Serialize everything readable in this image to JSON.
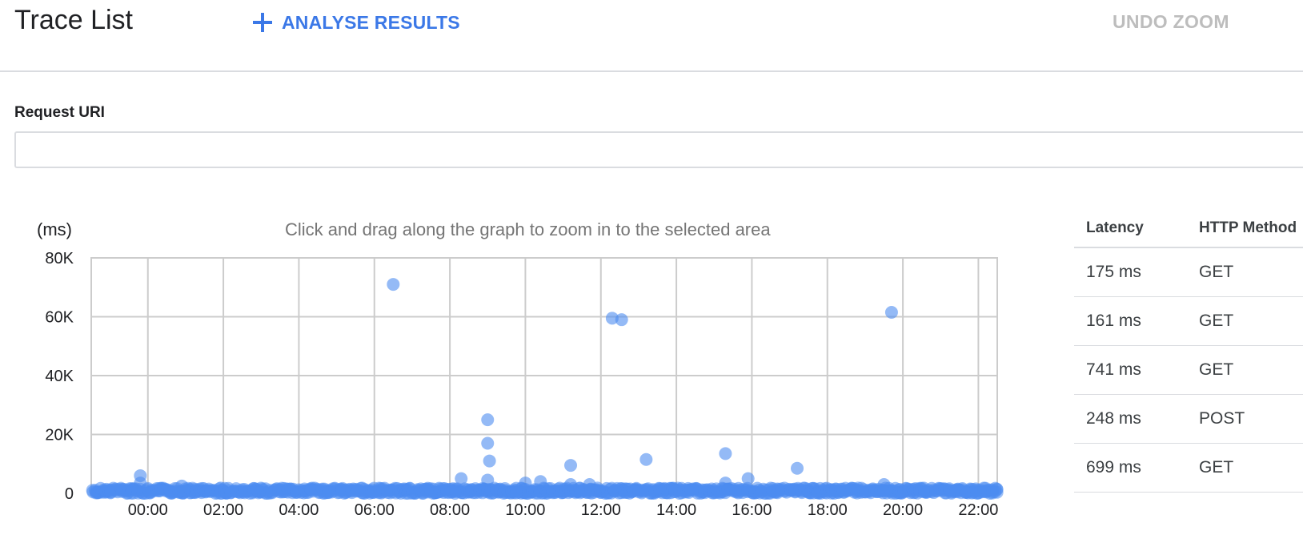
{
  "header": {
    "title": "Trace List",
    "analyse_label": "ANALYSE RESULTS",
    "undo_zoom_label": "UNDO ZOOM"
  },
  "filter": {
    "label": "Request URI",
    "value": "",
    "placeholder": ""
  },
  "chart": {
    "unit_label": "(ms)",
    "hint": "Click and drag along the graph to zoom in to the selected area"
  },
  "chart_data": {
    "type": "scatter",
    "title": "",
    "xlabel": "",
    "ylabel": "(ms)",
    "x_ticks": [
      "00:00",
      "02:00",
      "04:00",
      "06:00",
      "08:00",
      "10:00",
      "12:00",
      "14:00",
      "16:00",
      "18:00",
      "20:00",
      "22:00"
    ],
    "y_ticks": [
      "80K",
      "60K",
      "40K",
      "20K",
      "0"
    ],
    "xlim_hours": [
      -1.5,
      22.5
    ],
    "ylim": [
      0,
      80000
    ],
    "grid": true,
    "point_color": "#4c8cf0",
    "highlighted_points": [
      {
        "x": 6.5,
        "y": 71000
      },
      {
        "x": 12.3,
        "y": 59500
      },
      {
        "x": 12.55,
        "y": 59000
      },
      {
        "x": 19.7,
        "y": 61500
      },
      {
        "x": 9.0,
        "y": 25000
      },
      {
        "x": 9.0,
        "y": 17000
      },
      {
        "x": 9.05,
        "y": 11000
      },
      {
        "x": 9.0,
        "y": 4500
      },
      {
        "x": 8.3,
        "y": 5000
      },
      {
        "x": 11.2,
        "y": 9500
      },
      {
        "x": 13.2,
        "y": 11500
      },
      {
        "x": 15.3,
        "y": 13500
      },
      {
        "x": 15.3,
        "y": 3500
      },
      {
        "x": 15.9,
        "y": 5000
      },
      {
        "x": 17.2,
        "y": 8500
      },
      {
        "x": -0.2,
        "y": 6000
      },
      {
        "x": -0.2,
        "y": 3500
      },
      {
        "x": 10.0,
        "y": 3500
      },
      {
        "x": 10.4,
        "y": 4000
      },
      {
        "x": 11.2,
        "y": 3000
      },
      {
        "x": 11.7,
        "y": 3000
      },
      {
        "x": 19.5,
        "y": 3000
      },
      {
        "x": 0.9,
        "y": 2500
      }
    ],
    "baseline_band": {
      "x_from": -1.5,
      "x_to": 22.5,
      "y_max": 1800
    }
  },
  "table": {
    "columns": [
      "Latency",
      "HTTP Method"
    ],
    "rows": [
      {
        "latency": "175 ms",
        "method": "GET"
      },
      {
        "latency": "161 ms",
        "method": "GET"
      },
      {
        "latency": "741 ms",
        "method": "GET"
      },
      {
        "latency": "248 ms",
        "method": "POST"
      },
      {
        "latency": "699 ms",
        "method": "GET"
      }
    ]
  }
}
